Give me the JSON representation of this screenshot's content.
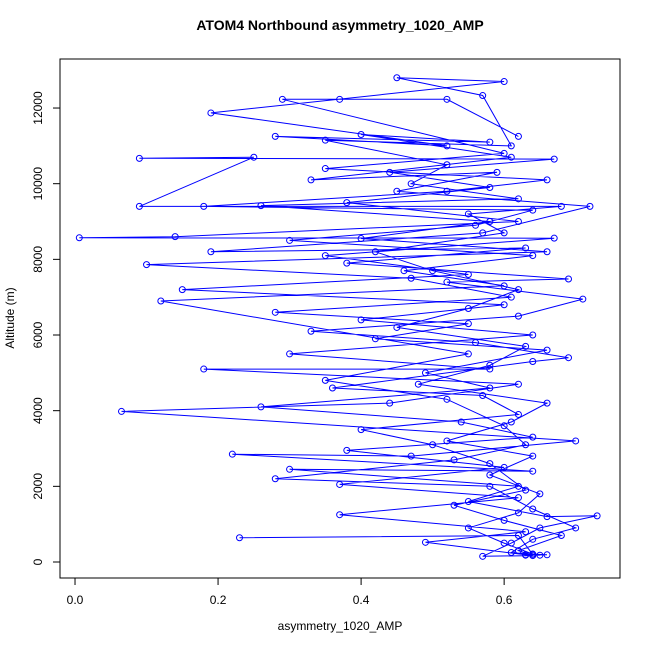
{
  "chart_data": {
    "type": "line",
    "title": "ATOM4 Northbound asymmetry_1020_AMP",
    "x_label": "asymmetry_1020_AMP",
    "y_label": "Altitude (m)",
    "color": "#0000ff",
    "xlim": [
      -0.021,
      0.762
    ],
    "ylim": [
      -423,
      13296
    ],
    "xticks": [
      {
        "value": 0,
        "label": "0.0"
      },
      {
        "value": 0.2,
        "label": "0.2"
      },
      {
        "value": 0.4,
        "label": "0.4"
      },
      {
        "value": 0.6,
        "label": "0.6"
      }
    ],
    "yticks": [
      0,
      2000,
      4000,
      6000,
      8000,
      10000,
      12000
    ],
    "x": [
      0.23,
      0.62,
      0.64,
      0.63,
      0.66,
      0.64,
      0.6,
      0.55,
      0.62,
      0.65,
      0.58,
      0.64,
      0.52,
      0.61,
      0.66,
      0.48,
      0.58,
      0.63,
      0.45,
      0.55,
      0.62,
      0.5,
      0.42,
      0.6,
      0.55,
      0.68,
      0.09,
      0.25,
      0.09,
      0.67,
      0.44,
      0.58,
      0.38,
      0.62,
      0.14,
      0.006,
      0.67,
      0.35,
      0.55,
      0.15,
      0.6,
      0.4,
      0.64,
      0.3,
      0.58,
      0.18,
      0.62,
      0.44,
      0.065,
      0.7,
      0.47,
      0.22,
      0.64,
      0.3,
      0.62,
      0.55,
      0.66,
      0.73,
      0.65,
      0.61,
      0.57,
      0.64,
      0.62,
      0.68,
      0.6,
      0.53,
      0.63,
      0.58,
      0.5,
      0.4,
      0.62,
      0.57,
      0.36,
      0.64,
      0.69,
      0.56,
      0.33,
      0.62,
      0.71,
      0.52,
      0.69,
      0.38,
      0.63,
      0.19,
      0.57,
      0.72,
      0.45,
      0.59,
      0.33,
      0.61,
      0.4,
      0.58,
      0.28,
      0.52,
      0.19,
      0.6,
      0.45,
      0.57,
      0.61,
      0.35,
      0.52,
      0.47,
      0.62,
      0.26,
      0.58,
      0.4,
      0.66,
      0.1,
      0.47,
      0.61,
      0.28,
      0.55,
      0.42,
      0.66,
      0.49,
      0.58,
      0.26,
      0.54,
      0.64,
      0.38,
      0.6,
      0.37,
      0.62,
      0.37,
      0.63,
      0.49,
      0.63,
      0.65,
      0.61,
      0.64,
      0.7,
      0.64,
      0.58,
      0.28,
      0.53,
      0.63,
      0.6,
      0.52,
      0.35,
      0.55,
      0.12,
      0.6,
      0.46,
      0.64,
      0.3,
      0.56,
      0.64,
      0.18,
      0.52,
      0.66,
      0.35,
      0.6,
      0.29,
      0.37,
      0.52,
      0.62
    ],
    "values": [
      640,
      700,
      200,
      180,
      190,
      210,
      500,
      900,
      1300,
      1800,
      2300,
      2800,
      3200,
      3700,
      4200,
      4700,
      5200,
      5700,
      6200,
      6700,
      7200,
      7700,
      8200,
      8700,
      9200,
      9400,
      9400,
      10700,
      10670,
      10650,
      10300,
      9900,
      9500,
      9000,
      8600,
      8570,
      8560,
      8100,
      7600,
      7200,
      6800,
      6400,
      6000,
      5500,
      5100,
      5100,
      4700,
      4200,
      3980,
      3200,
      2800,
      2850,
      2400,
      2450,
      2000,
      1600,
      1200,
      1220,
      900,
      500,
      150,
      170,
      300,
      700,
      1100,
      1500,
      1900,
      2600,
      3100,
      3500,
      3900,
      4400,
      4600,
      5300,
      5400,
      5800,
      6100,
      6500,
      6950,
      7400,
      7480,
      7900,
      8300,
      8200,
      8700,
      9400,
      9800,
      10300,
      10100,
      10700,
      11300,
      11100,
      11250,
      11000,
      11870,
      12700,
      12800,
      12330,
      11000,
      11150,
      10500,
      10000,
      9600,
      9420,
      9000,
      8550,
      8200,
      7860,
      7500,
      7000,
      6600,
      6300,
      5900,
      5600,
      5000,
      4600,
      4100,
      3700,
      3300,
      2950,
      2500,
      2050,
      1700,
      1250,
      800,
      520,
      190,
      180,
      250,
      600,
      900,
      1400,
      2000,
      2200,
      2700,
      3100,
      3600,
      4300,
      4800,
      5500,
      6900,
      7300,
      7700,
      8100,
      8500,
      8900,
      9300,
      9400,
      9800,
      10100,
      10400,
      10800,
      12230,
      12230,
      12230,
      11250
    ]
  }
}
